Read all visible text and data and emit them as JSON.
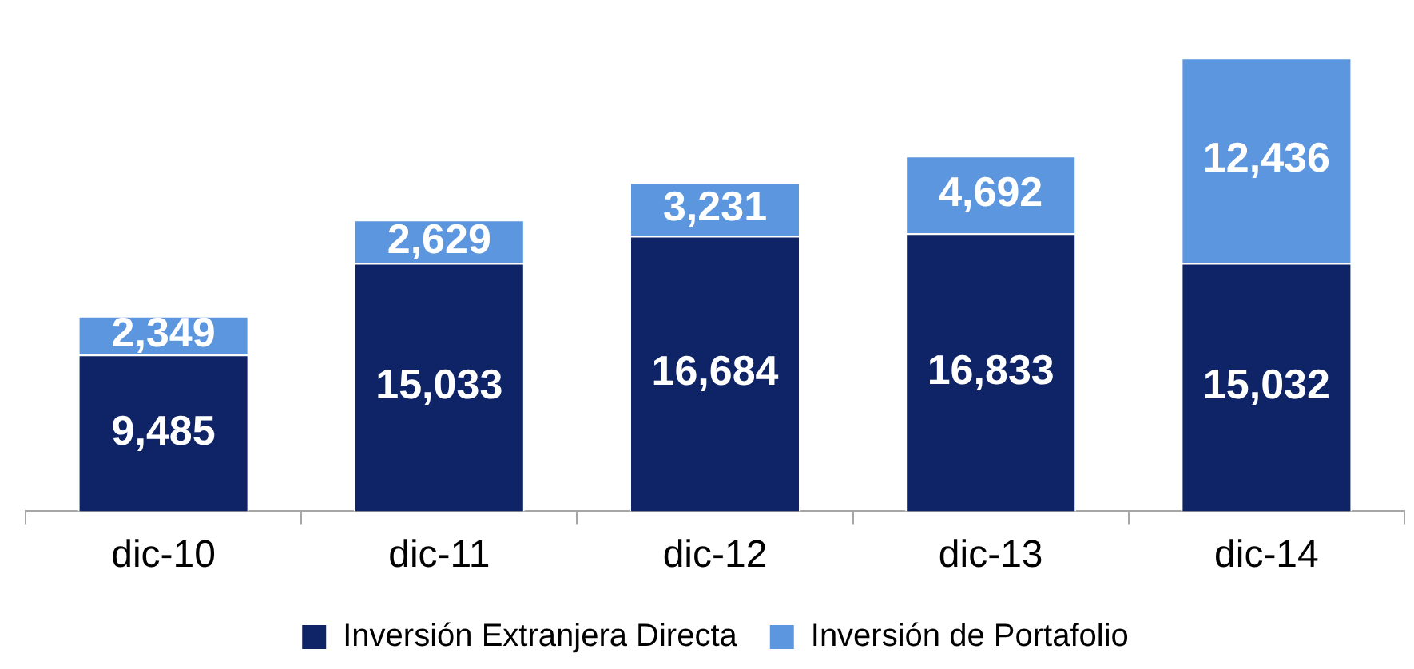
{
  "chart_data": {
    "type": "bar",
    "stacked": true,
    "legend": "bottom",
    "categories": [
      "dic-10",
      "dic-11",
      "dic-12",
      "dic-13",
      "dic-14"
    ],
    "series": [
      {
        "name": "Inversión Extranjera Directa",
        "color": "#0f2466",
        "values": [
          9485,
          15033,
          16684,
          16833,
          15032
        ],
        "value_labels": [
          "9,485",
          "15,033",
          "16,684",
          "16,833",
          "15,032"
        ]
      },
      {
        "name": "Inversión de Portafolio",
        "color": "#5b96de",
        "values": [
          2349,
          2629,
          3231,
          4692,
          12436
        ],
        "value_labels": [
          "2,349",
          "2,629",
          "3,231",
          "4,692",
          "12,436"
        ]
      }
    ]
  }
}
